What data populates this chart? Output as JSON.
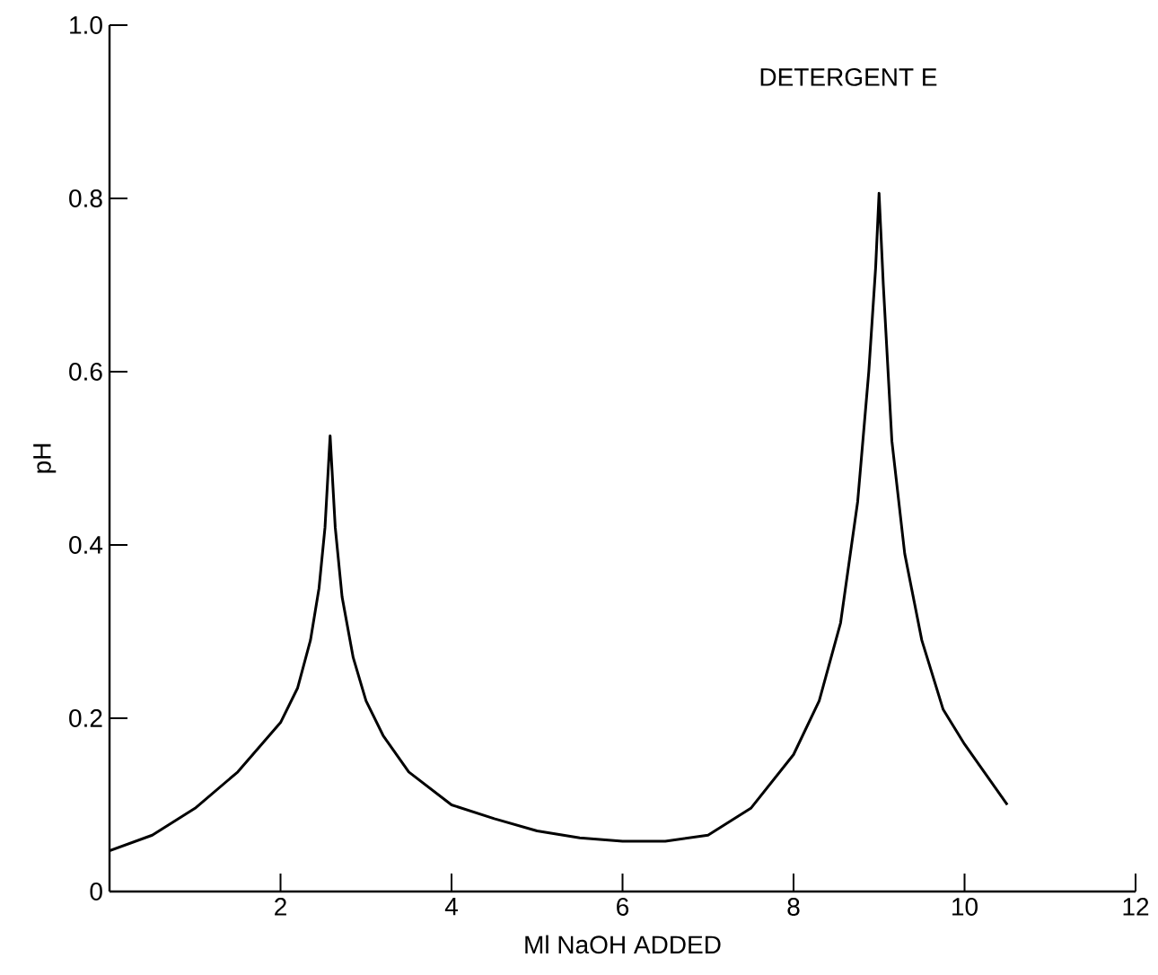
{
  "chart_data": {
    "type": "line",
    "title": "DETERGENT E",
    "xlabel": "Ml NaOH ADDED",
    "ylabel": "pH",
    "x": [
      0,
      0.5,
      1,
      1.5,
      2,
      2.2,
      2.35,
      2.45,
      2.52,
      2.58,
      2.64,
      2.72,
      2.85,
      3.0,
      3.2,
      3.5,
      4,
      4.5,
      5,
      5.5,
      6,
      6.5,
      7,
      7.5,
      8,
      8.3,
      8.55,
      8.75,
      8.88,
      8.96,
      9.0,
      9.05,
      9.15,
      9.3,
      9.5,
      9.75,
      10,
      10.5
    ],
    "series": [
      {
        "color": "#000000",
        "values": [
          0.047,
          0.065,
          0.096,
          0.138,
          0.195,
          0.235,
          0.29,
          0.35,
          0.42,
          0.526,
          0.42,
          0.34,
          0.27,
          0.22,
          0.18,
          0.138,
          0.1,
          0.084,
          0.07,
          0.062,
          0.058,
          0.058,
          0.065,
          0.096,
          0.158,
          0.22,
          0.31,
          0.45,
          0.6,
          0.72,
          0.806,
          0.7,
          0.52,
          0.39,
          0.29,
          0.21,
          0.17,
          0.1
        ]
      }
    ],
    "xlim": [
      0,
      12
    ],
    "ylim": [
      0,
      1
    ],
    "xticks": [
      2,
      4,
      6,
      8,
      10,
      12
    ],
    "yticks": [
      0,
      0.2,
      0.4,
      0.6,
      0.8,
      {
        "value": 1,
        "label": "1.0"
      }
    ]
  }
}
